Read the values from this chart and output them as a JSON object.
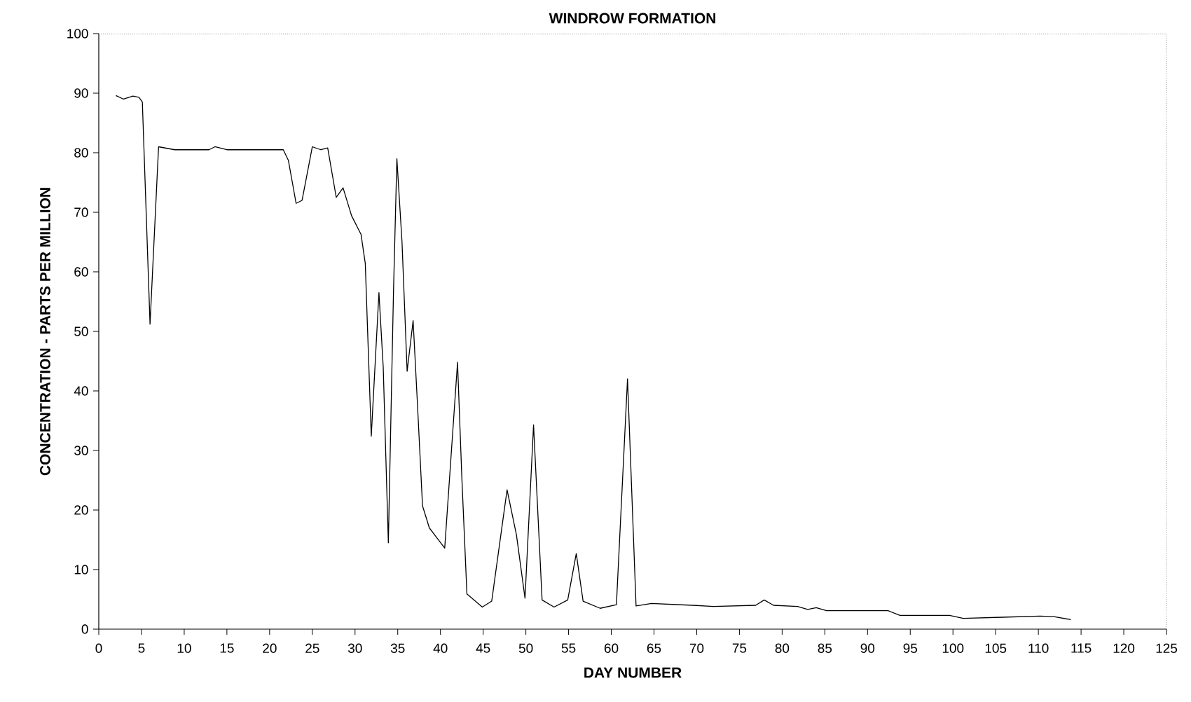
{
  "chart_data": {
    "type": "line",
    "title": "WINDROW FORMATION",
    "xlabel": "DAY NUMBER",
    "ylabel": "CONCENTRATION - PARTS PER MILLION",
    "xlim": [
      0,
      125
    ],
    "ylim": [
      0,
      100
    ],
    "xticks": [
      0,
      5,
      10,
      15,
      20,
      25,
      30,
      35,
      40,
      45,
      50,
      55,
      60,
      65,
      70,
      75,
      80,
      85,
      90,
      95,
      100,
      105,
      110,
      115,
      120,
      125
    ],
    "yticks": [
      0,
      10,
      20,
      30,
      40,
      50,
      60,
      70,
      80,
      90,
      100
    ],
    "grid": false,
    "marker": "none",
    "line_style": "solid",
    "series": [
      {
        "color": "#000000",
        "x": [
          2.0,
          2.9,
          4.0,
          4.7,
          5.1,
          6.0,
          7.0,
          8.9,
          12.9,
          13.6,
          15.0,
          21.6,
          22.2,
          23.1,
          23.8,
          25.0,
          26.0,
          26.8,
          27.8,
          28.6,
          29.6,
          30.7,
          31.2,
          31.9,
          32.8,
          33.3,
          33.9,
          34.5,
          34.9,
          35.5,
          36.1,
          36.8,
          37.3,
          37.9,
          38.7,
          40.5,
          42.0,
          42.5,
          43.1,
          44.9,
          46.0,
          47.8,
          48.9,
          49.9,
          50.9,
          51.9,
          53.3,
          54.9,
          55.9,
          56.7,
          58.7,
          60.6,
          61.9,
          62.9,
          64.7,
          69.6,
          72.0,
          76.9,
          77.9,
          79.0,
          81.8,
          83.0,
          84.0,
          85.2,
          92.4,
          93.8,
          99.6,
          101.2,
          105.8,
          110.2,
          111.8,
          113.8
        ],
        "values": [
          89.6,
          89.0,
          89.5,
          89.3,
          88.5,
          51.2,
          81.0,
          80.5,
          80.5,
          81.0,
          80.5,
          80.5,
          78.7,
          71.5,
          72.0,
          81.0,
          80.5,
          80.8,
          72.5,
          74.1,
          69.4,
          66.3,
          61.4,
          32.4,
          56.5,
          44.0,
          14.5,
          56.5,
          79.0,
          65.0,
          43.3,
          51.8,
          38.0,
          20.7,
          17.0,
          13.6,
          44.8,
          25.6,
          5.9,
          3.7,
          4.7,
          23.4,
          15.8,
          5.2,
          34.3,
          4.9,
          3.7,
          4.9,
          12.7,
          4.7,
          3.5,
          4.1,
          42.0,
          3.9,
          4.3,
          4.0,
          3.8,
          4.0,
          4.9,
          4.0,
          3.8,
          3.3,
          3.6,
          3.1,
          3.1,
          2.3,
          2.3,
          1.8,
          2.0,
          2.2,
          2.1,
          1.6
        ]
      }
    ]
  }
}
